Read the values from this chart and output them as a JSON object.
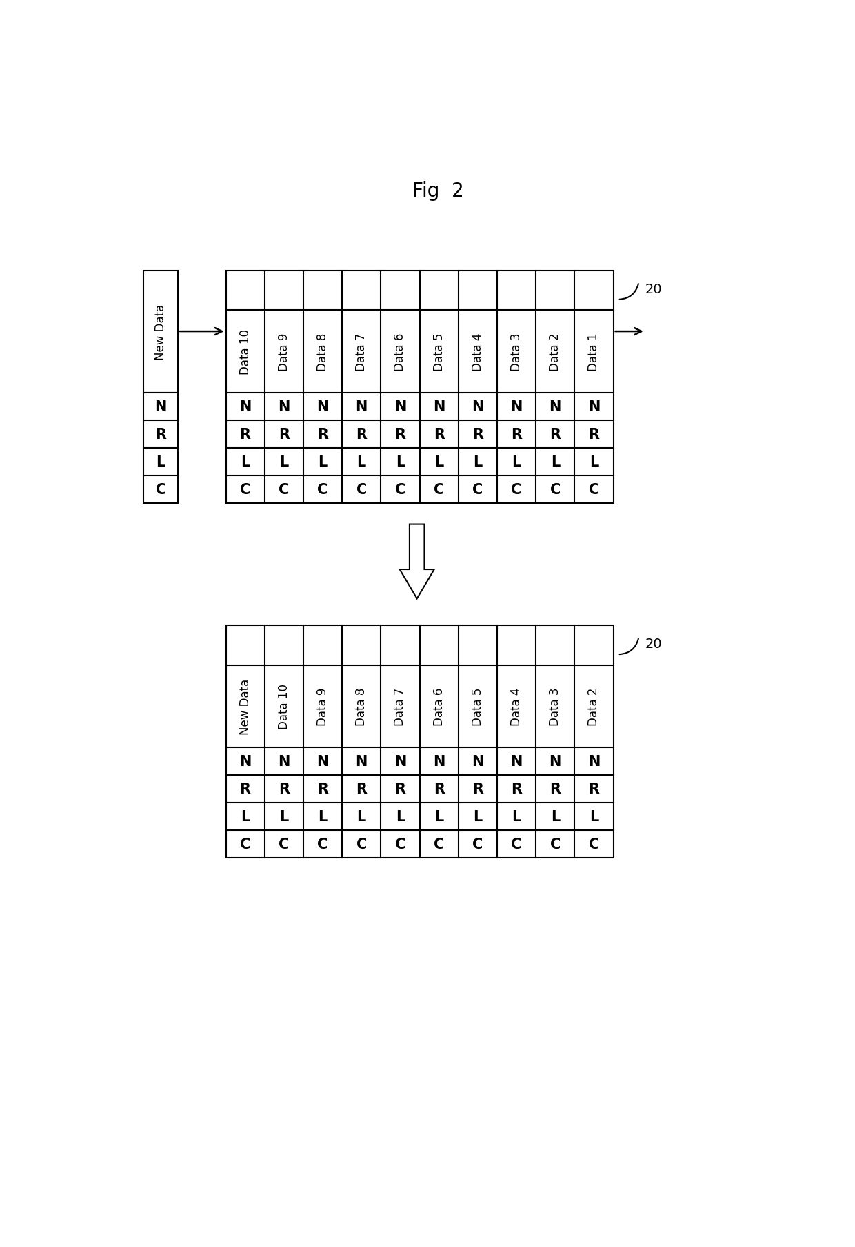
{
  "fig_title": "Fig  2",
  "label_20": "20",
  "table1_col_labels": [
    "Data 10",
    "Data 9",
    "Data 8",
    "Data 7",
    "Data 6",
    "Data 5",
    "Data 4",
    "Data 3",
    "Data 2",
    "Data 1"
  ],
  "table1_rows": [
    [
      "N",
      "N",
      "N",
      "N",
      "N",
      "N",
      "N",
      "N",
      "N",
      "N"
    ],
    [
      "R",
      "R",
      "R",
      "R",
      "R",
      "R",
      "R",
      "R",
      "R",
      "R"
    ],
    [
      "L",
      "L",
      "L",
      "L",
      "L",
      "L",
      "L",
      "L",
      "L",
      "L"
    ],
    [
      "C",
      "C",
      "C",
      "C",
      "C",
      "C",
      "C",
      "C",
      "C",
      "C"
    ]
  ],
  "table2_col_labels": [
    "New Data",
    "Data 10",
    "Data 9",
    "Data 8",
    "Data 7",
    "Data 6",
    "Data 5",
    "Data 4",
    "Data 3",
    "Data 2"
  ],
  "table2_rows": [
    [
      "N",
      "N",
      "N",
      "N",
      "N",
      "N",
      "N",
      "N",
      "N",
      "N"
    ],
    [
      "R",
      "R",
      "R",
      "R",
      "R",
      "R",
      "R",
      "R",
      "R",
      "R"
    ],
    [
      "L",
      "L",
      "L",
      "L",
      "L",
      "L",
      "L",
      "L",
      "L",
      "L"
    ],
    [
      "C",
      "C",
      "C",
      "C",
      "C",
      "C",
      "C",
      "C",
      "C",
      "C"
    ]
  ],
  "side_labels": [
    "N",
    "R",
    "L",
    "C"
  ],
  "bg_color": "#ffffff",
  "line_color": "#000000",
  "text_color": "#000000",
  "font_size_title": 20,
  "font_size_cell": 15,
  "font_size_header": 12,
  "font_size_20": 14
}
